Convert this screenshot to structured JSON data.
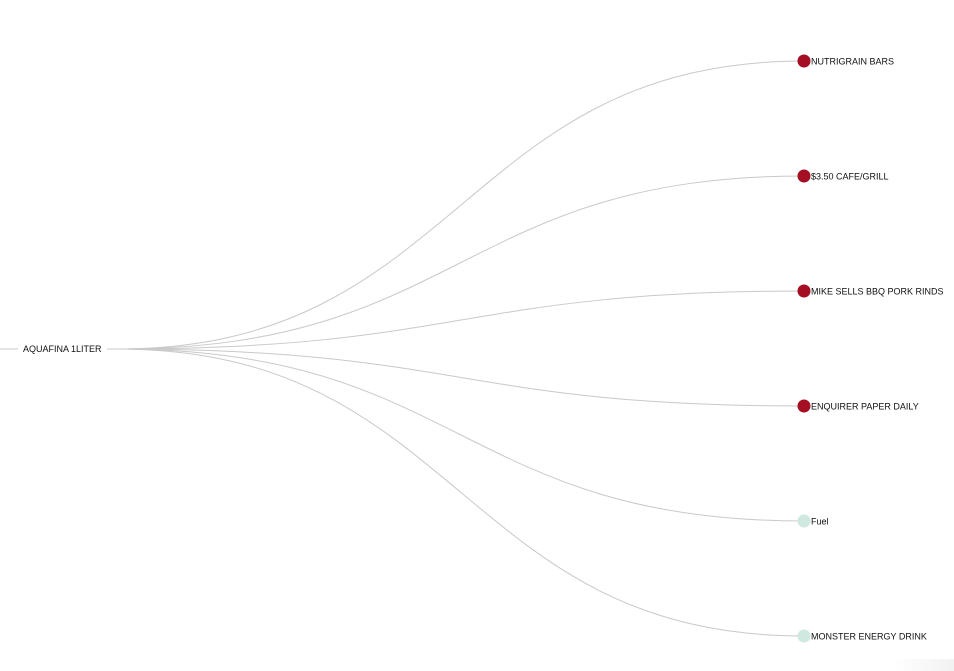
{
  "root": {
    "label": "AQUAFINA 1LITER"
  },
  "children": [
    {
      "label": "NUTRIGRAIN BARS",
      "status": "red"
    },
    {
      "label": "$3.50 CAFE/GRILL",
      "status": "red"
    },
    {
      "label": "MIKE SELLS BBQ PORK RINDS",
      "status": "red"
    },
    {
      "label": "ENQUIRER PAPER DAILY",
      "status": "red"
    },
    {
      "label": "Fuel",
      "status": "light"
    },
    {
      "label": "MONSTER ENERGY DRINK",
      "status": "light"
    }
  ],
  "colors": {
    "red": "#a50f24",
    "light": "#cfe8e0",
    "link": "#c9c9c9",
    "text": "#111111"
  }
}
